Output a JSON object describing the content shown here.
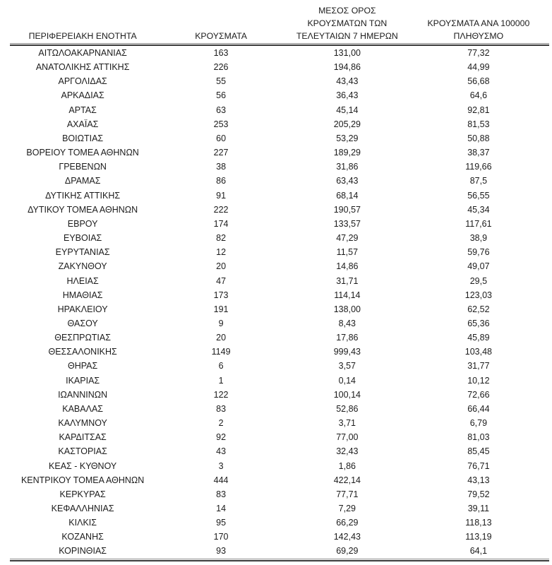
{
  "document": {
    "language": "el",
    "table": {
      "columns": [
        {
          "id": "region",
          "label": "ΠΕΡΙΦΕΡΕΙΑΚΗ ΕΝΟΤΗΤΑ"
        },
        {
          "id": "cases",
          "label": "ΚΡΟΥΣΜΑΤΑ"
        },
        {
          "id": "avg7days",
          "label": "ΜΕΣΟΣ ΟΡΟΣ\nΚΡΟΥΣΜΑΤΩΝ ΤΩΝ\nΤΕΛΕΥΤΑΙΩΝ 7 ΗΜΕΡΩΝ"
        },
        {
          "id": "per100k",
          "label": "ΚΡΟΥΣΜΑΤΑ ΑΝΑ 100000\nΠΛΗΘΥΣΜΟ"
        }
      ],
      "rows": [
        [
          "ΑΙΤΩΛΟΑΚΑΡΝΑΝΙΑΣ",
          "163",
          "131,00",
          "77,32"
        ],
        [
          "ΑΝΑΤΟΛΙΚΗΣ ΑΤΤΙΚΗΣ",
          "226",
          "194,86",
          "44,99"
        ],
        [
          "ΑΡΓΟΛΙΔΑΣ",
          "55",
          "43,43",
          "56,68"
        ],
        [
          "ΑΡΚΑΔΙΑΣ",
          "56",
          "36,43",
          "64,6"
        ],
        [
          "ΑΡΤΑΣ",
          "63",
          "45,14",
          "92,81"
        ],
        [
          "ΑΧΑΪΑΣ",
          "253",
          "205,29",
          "81,53"
        ],
        [
          "ΒΟΙΩΤΙΑΣ",
          "60",
          "53,29",
          "50,88"
        ],
        [
          "ΒΟΡΕΙΟΥ ΤΟΜΕΑ ΑΘΗΝΩΝ",
          "227",
          "189,29",
          "38,37"
        ],
        [
          "ΓΡΕΒΕΝΩΝ",
          "38",
          "31,86",
          "119,66"
        ],
        [
          "ΔΡΑΜΑΣ",
          "86",
          "63,43",
          "87,5"
        ],
        [
          "ΔΥΤΙΚΗΣ ΑΤΤΙΚΗΣ",
          "91",
          "68,14",
          "56,55"
        ],
        [
          "ΔΥΤΙΚΟΥ ΤΟΜΕΑ ΑΘΗΝΩΝ",
          "222",
          "190,57",
          "45,34"
        ],
        [
          "ΕΒΡΟΥ",
          "174",
          "133,57",
          "117,61"
        ],
        [
          "ΕΥΒΟΙΑΣ",
          "82",
          "47,29",
          "38,9"
        ],
        [
          "ΕΥΡΥΤΑΝΙΑΣ",
          "12",
          "11,57",
          "59,76"
        ],
        [
          "ΖΑΚΥΝΘΟΥ",
          "20",
          "14,86",
          "49,07"
        ],
        [
          "ΗΛΕΙΑΣ",
          "47",
          "31,71",
          "29,5"
        ],
        [
          "ΗΜΑΘΙΑΣ",
          "173",
          "114,14",
          "123,03"
        ],
        [
          "ΗΡΑΚΛΕΙΟΥ",
          "191",
          "138,00",
          "62,52"
        ],
        [
          "ΘΑΣΟΥ",
          "9",
          "8,43",
          "65,36"
        ],
        [
          "ΘΕΣΠΡΩΤΙΑΣ",
          "20",
          "17,86",
          "45,89"
        ],
        [
          "ΘΕΣΣΑΛΟΝΙΚΗΣ",
          "1149",
          "999,43",
          "103,48"
        ],
        [
          "ΘΗΡΑΣ",
          "6",
          "3,57",
          "31,77"
        ],
        [
          "ΙΚΑΡΙΑΣ",
          "1",
          "0,14",
          "10,12"
        ],
        [
          "ΙΩΑΝΝΙΝΩΝ",
          "122",
          "100,14",
          "72,66"
        ],
        [
          "ΚΑΒΑΛΑΣ",
          "83",
          "52,86",
          "66,44"
        ],
        [
          "ΚΑΛΥΜΝΟΥ",
          "2",
          "3,71",
          "6,79"
        ],
        [
          "ΚΑΡΔΙΤΣΑΣ",
          "92",
          "77,00",
          "81,03"
        ],
        [
          "ΚΑΣΤΟΡΙΑΣ",
          "43",
          "32,43",
          "85,45"
        ],
        [
          "ΚΕΑΣ - ΚΥΘΝΟΥ",
          "3",
          "1,86",
          "76,71"
        ],
        [
          "ΚΕΝΤΡΙΚΟΥ ΤΟΜΕΑ ΑΘΗΝΩΝ",
          "444",
          "422,14",
          "43,13"
        ],
        [
          "ΚΕΡΚΥΡΑΣ",
          "83",
          "77,71",
          "79,52"
        ],
        [
          "ΚΕΦΑΛΛΗΝΙΑΣ",
          "14",
          "7,29",
          "39,11"
        ],
        [
          "ΚΙΛΚΙΣ",
          "95",
          "66,29",
          "118,13"
        ],
        [
          "ΚΟΖΑΝΗΣ",
          "170",
          "142,43",
          "113,19"
        ],
        [
          "ΚΟΡΙΝΘΙΑΣ",
          "93",
          "69,29",
          "64,1"
        ]
      ]
    }
  },
  "chart_data": {
    "type": "table",
    "title": "",
    "columns": [
      "ΠΕΡΙΦΕΡΕΙΑΚΗ ΕΝΟΤΗΤΑ",
      "ΚΡΟΥΣΜΑΤΑ",
      "ΜΕΣΟΣ ΟΡΟΣ ΚΡΟΥΣΜΑΤΩΝ ΤΩΝ ΤΕΛΕΥΤΑΙΩΝ 7 ΗΜΕΡΩΝ",
      "ΚΡΟΥΣΜΑΤΑ ΑΝΑ 100000 ΠΛΗΘΥΣΜΟ"
    ],
    "rows": [
      [
        "ΑΙΤΩΛΟΑΚΑΡΝΑΝΙΑΣ",
        163,
        131.0,
        77.32
      ],
      [
        "ΑΝΑΤΟΛΙΚΗΣ ΑΤΤΙΚΗΣ",
        226,
        194.86,
        44.99
      ],
      [
        "ΑΡΓΟΛΙΔΑΣ",
        55,
        43.43,
        56.68
      ],
      [
        "ΑΡΚΑΔΙΑΣ",
        56,
        36.43,
        64.6
      ],
      [
        "ΑΡΤΑΣ",
        63,
        45.14,
        92.81
      ],
      [
        "ΑΧΑΪΑΣ",
        253,
        205.29,
        81.53
      ],
      [
        "ΒΟΙΩΤΙΑΣ",
        60,
        53.29,
        50.88
      ],
      [
        "ΒΟΡΕΙΟΥ ΤΟΜΕΑ ΑΘΗΝΩΝ",
        227,
        189.29,
        38.37
      ],
      [
        "ΓΡΕΒΕΝΩΝ",
        38,
        31.86,
        119.66
      ],
      [
        "ΔΡΑΜΑΣ",
        86,
        63.43,
        87.5
      ],
      [
        "ΔΥΤΙΚΗΣ ΑΤΤΙΚΗΣ",
        91,
        68.14,
        56.55
      ],
      [
        "ΔΥΤΙΚΟΥ ΤΟΜΕΑ ΑΘΗΝΩΝ",
        222,
        190.57,
        45.34
      ],
      [
        "ΕΒΡΟΥ",
        174,
        133.57,
        117.61
      ],
      [
        "ΕΥΒΟΙΑΣ",
        82,
        47.29,
        38.9
      ],
      [
        "ΕΥΡΥΤΑΝΙΑΣ",
        12,
        11.57,
        59.76
      ],
      [
        "ΖΑΚΥΝΘΟΥ",
        20,
        14.86,
        49.07
      ],
      [
        "ΗΛΕΙΑΣ",
        47,
        31.71,
        29.5
      ],
      [
        "ΗΜΑΘΙΑΣ",
        173,
        114.14,
        123.03
      ],
      [
        "ΗΡΑΚΛΕΙΟΥ",
        191,
        138.0,
        62.52
      ],
      [
        "ΘΑΣΟΥ",
        9,
        8.43,
        65.36
      ],
      [
        "ΘΕΣΠΡΩΤΙΑΣ",
        20,
        17.86,
        45.89
      ],
      [
        "ΘΕΣΣΑΛΟΝΙΚΗΣ",
        1149,
        999.43,
        103.48
      ],
      [
        "ΘΗΡΑΣ",
        6,
        3.57,
        31.77
      ],
      [
        "ΙΚΑΡΙΑΣ",
        1,
        0.14,
        10.12
      ],
      [
        "ΙΩΑΝΝΙΝΩΝ",
        122,
        100.14,
        72.66
      ],
      [
        "ΚΑΒΑΛΑΣ",
        83,
        52.86,
        66.44
      ],
      [
        "ΚΑΛΥΜΝΟΥ",
        2,
        3.71,
        6.79
      ],
      [
        "ΚΑΡΔΙΤΣΑΣ",
        92,
        77.0,
        81.03
      ],
      [
        "ΚΑΣΤΟΡΙΑΣ",
        43,
        32.43,
        85.45
      ],
      [
        "ΚΕΑΣ - ΚΥΘΝΟΥ",
        3,
        1.86,
        76.71
      ],
      [
        "ΚΕΝΤΡΙΚΟΥ ΤΟΜΕΑ ΑΘΗΝΩΝ",
        444,
        422.14,
        43.13
      ],
      [
        "ΚΕΡΚΥΡΑΣ",
        83,
        77.71,
        79.52
      ],
      [
        "ΚΕΦΑΛΛΗΝΙΑΣ",
        14,
        7.29,
        39.11
      ],
      [
        "ΚΙΛΚΙΣ",
        95,
        66.29,
        118.13
      ],
      [
        "ΚΟΖΑΝΗΣ",
        170,
        142.43,
        113.19
      ],
      [
        "ΚΟΡΙΝΘΙΑΣ",
        93,
        69.29,
        64.1
      ]
    ]
  },
  "colors": {
    "text": "#1c1c1c",
    "rule_dark": "#3a3a3a",
    "rule_light": "#8e8e8e",
    "background": "#ffffff"
  }
}
